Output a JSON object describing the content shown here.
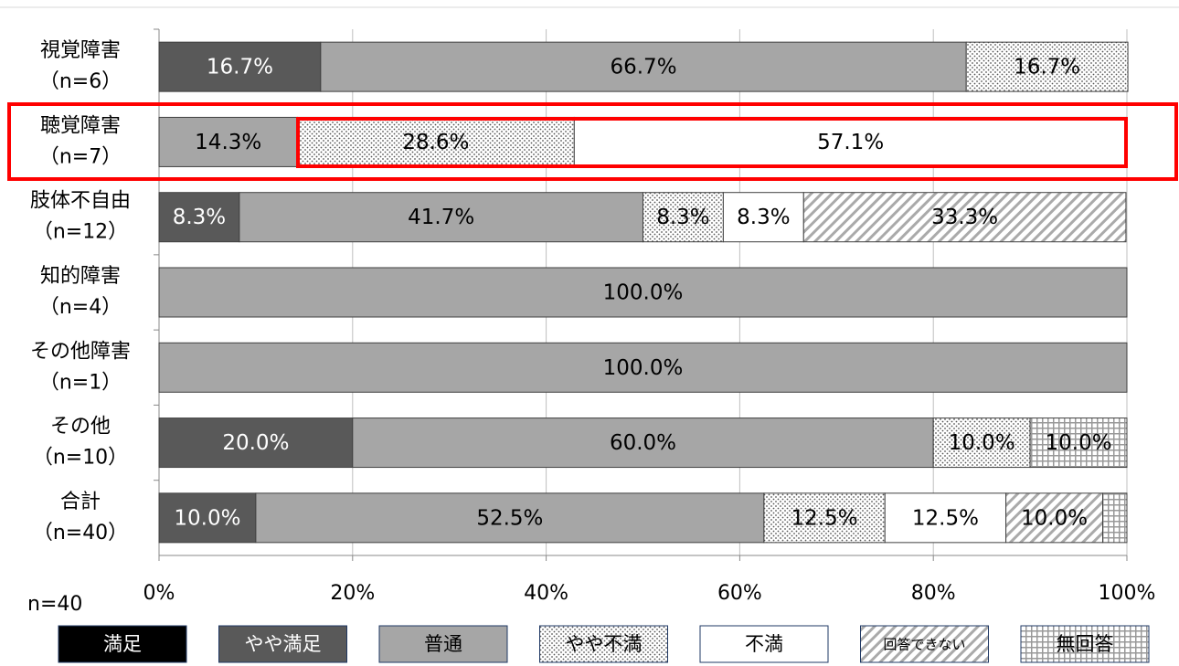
{
  "chart_data": {
    "type": "stacked_barh",
    "categories": [
      "視覚障害",
      "聴覚障害",
      "肢体不自由",
      "知的障害",
      "その他障害",
      "その他",
      "合計"
    ],
    "category_counts": [
      "（n=6）",
      "（n=7）",
      "（n=12）",
      "（n=4）",
      "（n=1）",
      "（n=10）",
      "（n=40）"
    ],
    "note": "n=40",
    "xlim": [
      0,
      100
    ],
    "xticks": [
      {
        "value": 0,
        "label": "0%"
      },
      {
        "value": 20,
        "label": "20%"
      },
      {
        "value": 40,
        "label": "40%"
      },
      {
        "value": 60,
        "label": "60%"
      },
      {
        "value": 80,
        "label": "80%"
      },
      {
        "value": 100,
        "label": "100%"
      }
    ],
    "series": [
      {
        "name": "満足",
        "color": "#000000",
        "bar_color": "#000000",
        "values": [
          0,
          0,
          0,
          0,
          0,
          0,
          0
        ],
        "value_labels": [
          null,
          null,
          null,
          null,
          null,
          null,
          null
        ]
      },
      {
        "name": "やや満足",
        "color": "#595959",
        "values": [
          16.7,
          0,
          8.3,
          0,
          0,
          20.0,
          10.0
        ],
        "value_labels": [
          "16.7%",
          null,
          "8.3%",
          null,
          null,
          "20.0%",
          "10.0%"
        ]
      },
      {
        "name": "普通",
        "color": "#a6a6a6",
        "values": [
          66.7,
          14.3,
          41.7,
          100.0,
          100.0,
          60.0,
          52.5
        ],
        "value_labels": [
          "66.7%",
          "14.3%",
          "41.7%",
          "100.0%",
          "100.0%",
          "60.0%",
          "52.5%"
        ]
      },
      {
        "name": "やや不満",
        "color": "#ffffff",
        "pattern": "dots",
        "values": [
          16.7,
          28.6,
          8.3,
          0,
          0,
          10.0,
          12.5
        ],
        "value_labels": [
          "16.7%",
          "28.6%",
          "8.3%",
          null,
          null,
          "10.0%",
          "12.5%"
        ]
      },
      {
        "name": "不満",
        "color": "#ffffff",
        "values": [
          0,
          57.1,
          8.3,
          0,
          0,
          0,
          12.5
        ],
        "value_labels": [
          null,
          "57.1%",
          "8.3%",
          null,
          null,
          null,
          "12.5%"
        ]
      },
      {
        "name": "回答できない",
        "color": "#ffffff",
        "pattern": "hatch",
        "values": [
          0,
          0,
          33.3,
          0,
          0,
          0,
          10.0
        ],
        "value_labels": [
          null,
          null,
          "33.3%",
          null,
          null,
          null,
          "10.0%"
        ]
      },
      {
        "name": "無回答",
        "color": "#ffffff",
        "pattern": "grid",
        "values": [
          0,
          0,
          0,
          0,
          0,
          10.0,
          2.5
        ],
        "value_labels": [
          null,
          null,
          null,
          null,
          null,
          "10.0%",
          null
        ]
      }
    ]
  }
}
